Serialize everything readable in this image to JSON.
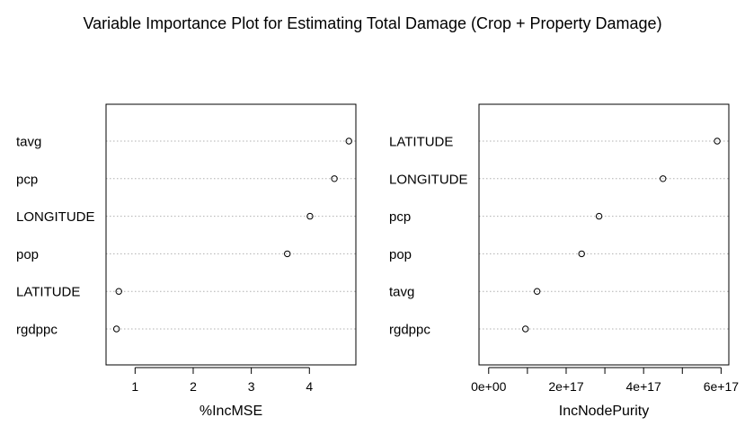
{
  "title": "Variable Importance Plot for Estimating Total Damage (Crop + Property Damage)",
  "chart_data": [
    {
      "type": "scatter",
      "subtype": "dotchart",
      "xlabel": "%IncMSE",
      "categories": [
        "tavg",
        "pcp",
        "LONGITUDE",
        "pop",
        "LATITUDE",
        "rgdppc"
      ],
      "values": [
        4.68,
        4.43,
        4.01,
        3.62,
        0.72,
        0.68
      ],
      "xlim": [
        0.5,
        4.8
      ],
      "xticks": [
        1,
        2,
        3,
        4
      ],
      "xtick_labels": [
        "1",
        "2",
        "3",
        "4"
      ],
      "grid": "dotted horizontal lines"
    },
    {
      "type": "scatter",
      "subtype": "dotchart",
      "xlabel": "IncNodePurity",
      "categories": [
        "LATITUDE",
        "LONGITUDE",
        "pcp",
        "pop",
        "tavg",
        "rgdppc"
      ],
      "values": [
        5.9e+17,
        4.5e+17,
        2.85e+17,
        2.4e+17,
        1.25e+17,
        9.5e+16
      ],
      "xlim": [
        -2.5e+16,
        6.2e+17
      ],
      "xticks": [
        0,
        1e+17,
        2e+17,
        3e+17,
        4e+17,
        5e+17,
        6e+17
      ],
      "xtick_labels": [
        "0e+00",
        "",
        "2e+17",
        "",
        "4e+17",
        "",
        "6e+17"
      ],
      "grid": "dotted horizontal lines"
    }
  ]
}
